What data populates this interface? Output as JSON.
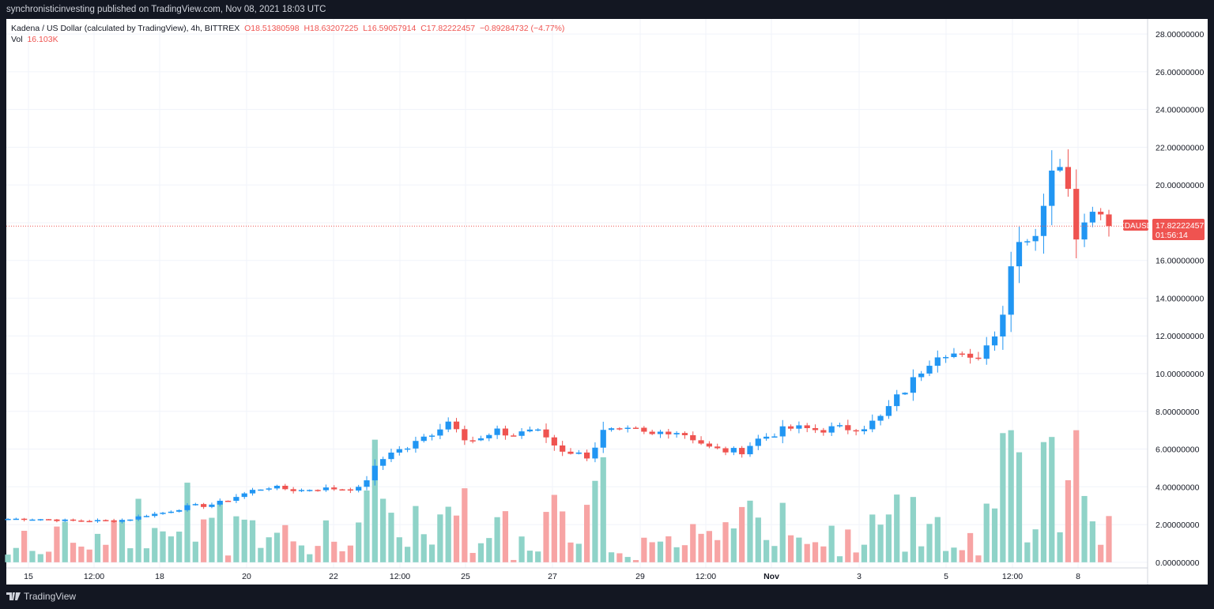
{
  "header": {
    "published": "synchronisticinvesting published on TradingView.com, Nov 08, 2021 18:03 UTC"
  },
  "legend": {
    "symbol": "Kadena / US Dollar (calculated by TradingView), 4h, BITTREX",
    "o": "O18.51380598",
    "h": "H18.63207225",
    "l": "L16.59057914",
    "c": "C17.82222457",
    "change": "−0.89284732 (−4.77%)",
    "vol_label": "Vol",
    "vol_value": "16.103K"
  },
  "price_tag": {
    "symbol": "KDAUSD",
    "price": "17.82222457",
    "countdown": "01:56:14",
    "color": "#ef5350"
  },
  "footer": {
    "brand": "TradingView"
  },
  "colors": {
    "up": "#2196f3",
    "down": "#ef5350",
    "vol_up": "#8fd3c8",
    "vol_down": "#f7a4a4"
  },
  "chart_data": {
    "type": "candlestick",
    "x_tick_labels": [
      "15",
      "12:00",
      "18",
      "20",
      "22",
      "12:00",
      "25",
      "27",
      "29",
      "12:00",
      "Nov",
      "3",
      "5",
      "12:00",
      "8"
    ],
    "y_tick_labels": [
      "0.00000000",
      "2.00000000",
      "4.00000000",
      "6.00000000",
      "8.00000000",
      "10.00000000",
      "12.00000000",
      "14.00000000",
      "16.00000000",
      "18.00000000",
      "20.00000000",
      "22.00000000",
      "24.00000000",
      "26.00000000",
      "28.00000000"
    ],
    "ylim": [
      0,
      28
    ],
    "close_trajectory": [
      2.3,
      2.3,
      2.3,
      2.25,
      2.2,
      2.2,
      2.2,
      2.2,
      2.3,
      2.5,
      2.6,
      2.8,
      3.0,
      3.0,
      3.2,
      3.5,
      3.8,
      4.0,
      3.9,
      3.8,
      3.9,
      3.9,
      3.9,
      3.9,
      5.0,
      5.9,
      6.0,
      6.5,
      7.0,
      7.6,
      6.5,
      6.5,
      6.9,
      6.7,
      7.1,
      6.8,
      6.0,
      5.8,
      5.6,
      7.0,
      6.9,
      7.0,
      6.7,
      7.0,
      6.9,
      6.5,
      6.0,
      5.9,
      5.9,
      6.5,
      6.8,
      7.1,
      7.1,
      7.0,
      7.1,
      7.1,
      7.2,
      7.6,
      8.6,
      9.4,
      10.5,
      11.3,
      11.0,
      10.6,
      11.5,
      13.0,
      17.5,
      17.0,
      19.9,
      21.8,
      17.0,
      19.2,
      17.8
    ],
    "candle_count": 136,
    "volume_note": "volume bars shown on same axis scale (0–7)"
  }
}
